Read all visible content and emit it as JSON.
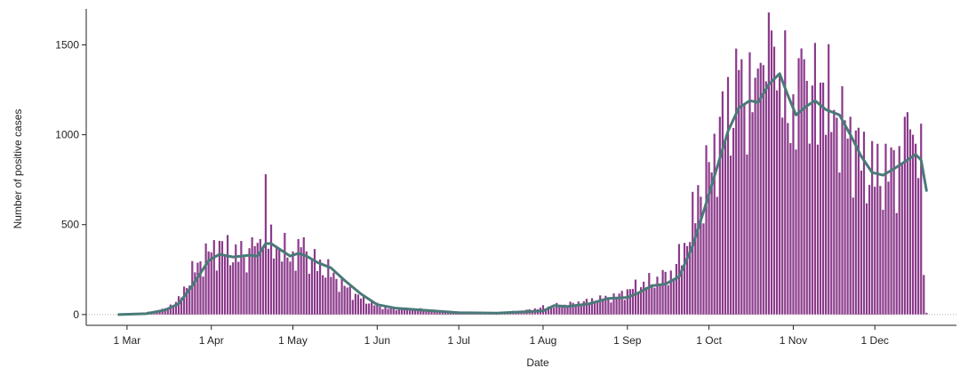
{
  "chart_data": {
    "type": "bar",
    "title": "",
    "xlabel": "Date",
    "ylabel": "Number of positive cases",
    "x_start_date": "2020-02-27",
    "x_range": [
      "2020-02-15",
      "2020-12-31"
    ],
    "ylim": [
      -60,
      1700
    ],
    "yticks": [
      0,
      500,
      1000,
      1500
    ],
    "xticks": [
      {
        "label": "1 Mar",
        "date": "2020-03-01"
      },
      {
        "label": "1 Apr",
        "date": "2020-04-01"
      },
      {
        "label": "1 May",
        "date": "2020-05-01"
      },
      {
        "label": "1 Jun",
        "date": "2020-06-01"
      },
      {
        "label": "1 Jul",
        "date": "2020-07-01"
      },
      {
        "label": "1 Aug",
        "date": "2020-08-01"
      },
      {
        "label": "1 Sep",
        "date": "2020-09-01"
      },
      {
        "label": "1 Oct",
        "date": "2020-10-01"
      },
      {
        "label": "1 Nov",
        "date": "2020-11-01"
      },
      {
        "label": "1 Dec",
        "date": "2020-12-01"
      }
    ],
    "colors": {
      "bars": "#8b3a8b",
      "trend": "#4a7a78",
      "zero_line": "#aaaaaa"
    },
    "bar_anchors": [
      [
        "2020-02-27",
        0
      ],
      [
        "2020-03-05",
        3
      ],
      [
        "2020-03-10",
        15
      ],
      [
        "2020-03-15",
        30
      ],
      [
        "2020-03-20",
        80
      ],
      [
        "2020-03-25",
        230
      ],
      [
        "2020-03-30",
        330
      ],
      [
        "2020-04-04",
        370
      ],
      [
        "2020-04-09",
        340
      ],
      [
        "2020-04-14",
        320
      ],
      [
        "2020-04-19",
        340
      ],
      [
        "2020-04-24",
        390
      ],
      [
        "2020-04-29",
        330
      ],
      [
        "2020-05-04",
        330
      ],
      [
        "2020-05-09",
        290
      ],
      [
        "2020-05-14",
        240
      ],
      [
        "2020-05-19",
        170
      ],
      [
        "2020-05-24",
        110
      ],
      [
        "2020-05-29",
        70
      ],
      [
        "2020-06-03",
        40
      ],
      [
        "2020-06-10",
        30
      ],
      [
        "2020-06-20",
        25
      ],
      [
        "2020-07-01",
        10
      ],
      [
        "2020-07-15",
        10
      ],
      [
        "2020-07-25",
        20
      ],
      [
        "2020-08-01",
        40
      ],
      [
        "2020-08-10",
        55
      ],
      [
        "2020-08-20",
        80
      ],
      [
        "2020-08-28",
        100
      ],
      [
        "2020-09-05",
        160
      ],
      [
        "2020-09-12",
        190
      ],
      [
        "2020-09-18",
        230
      ],
      [
        "2020-09-22",
        380
      ],
      [
        "2020-09-27",
        600
      ],
      [
        "2020-10-02",
        850
      ],
      [
        "2020-10-06",
        1050
      ],
      [
        "2020-10-10",
        1180
      ],
      [
        "2020-10-14",
        1250
      ],
      [
        "2020-10-18",
        1180
      ],
      [
        "2020-10-22",
        1300
      ],
      [
        "2020-10-26",
        1310
      ],
      [
        "2020-10-29",
        1200
      ],
      [
        "2020-11-01",
        1120
      ],
      [
        "2020-11-05",
        1180
      ],
      [
        "2020-11-09",
        1190
      ],
      [
        "2020-11-13",
        1140
      ],
      [
        "2020-11-17",
        1110
      ],
      [
        "2020-11-21",
        1020
      ],
      [
        "2020-11-25",
        900
      ],
      [
        "2020-11-29",
        800
      ],
      [
        "2020-12-03",
        780
      ],
      [
        "2020-12-08",
        820
      ],
      [
        "2020-12-12",
        880
      ],
      [
        "2020-12-16",
        900
      ],
      [
        "2020-12-18",
        800
      ],
      [
        "2020-12-20",
        600
      ]
    ],
    "bar_overrides": [
      [
        "2020-04-21",
        780
      ],
      [
        "2020-04-19",
        420
      ],
      [
        "2020-04-16",
        430
      ],
      [
        "2020-04-04",
        410
      ],
      [
        "2020-05-05",
        430
      ],
      [
        "2020-05-03",
        420
      ],
      [
        "2020-10-23",
        1680
      ],
      [
        "2020-10-24",
        1580
      ],
      [
        "2020-10-25",
        1490
      ],
      [
        "2020-10-20",
        1400
      ],
      [
        "2020-10-13",
        1420
      ],
      [
        "2020-10-12",
        1360
      ],
      [
        "2020-11-04",
        1480
      ],
      [
        "2020-11-05",
        1420
      ],
      [
        "2020-11-11",
        1290
      ],
      [
        "2020-11-12",
        1290
      ],
      [
        "2020-11-19",
        1270
      ],
      [
        "2020-09-27",
        720
      ],
      [
        "2020-10-05",
        1100
      ],
      [
        "2020-12-12",
        1100
      ],
      [
        "2020-12-14",
        1030
      ],
      [
        "2020-12-15",
        1000
      ],
      [
        "2020-12-16",
        950
      ],
      [
        "2020-12-19",
        220
      ],
      [
        "2020-12-20",
        10
      ]
    ],
    "trend_points": [
      [
        "2020-02-27",
        0
      ],
      [
        "2020-03-08",
        5
      ],
      [
        "2020-03-15",
        25
      ],
      [
        "2020-03-20",
        60
      ],
      [
        "2020-03-25",
        160
      ],
      [
        "2020-03-31",
        300
      ],
      [
        "2020-04-04",
        335
      ],
      [
        "2020-04-09",
        320
      ],
      [
        "2020-04-15",
        330
      ],
      [
        "2020-04-18",
        325
      ],
      [
        "2020-04-21",
        395
      ],
      [
        "2020-04-23",
        395
      ],
      [
        "2020-04-27",
        355
      ],
      [
        "2020-04-30",
        325
      ],
      [
        "2020-05-03",
        340
      ],
      [
        "2020-05-06",
        325
      ],
      [
        "2020-05-10",
        290
      ],
      [
        "2020-05-15",
        260
      ],
      [
        "2020-05-20",
        190
      ],
      [
        "2020-05-26",
        115
      ],
      [
        "2020-06-01",
        55
      ],
      [
        "2020-06-08",
        35
      ],
      [
        "2020-06-20",
        22
      ],
      [
        "2020-07-01",
        10
      ],
      [
        "2020-07-15",
        8
      ],
      [
        "2020-07-25",
        15
      ],
      [
        "2020-08-01",
        20
      ],
      [
        "2020-08-05",
        50
      ],
      [
        "2020-08-10",
        45
      ],
      [
        "2020-08-18",
        60
      ],
      [
        "2020-08-25",
        90
      ],
      [
        "2020-09-01",
        95
      ],
      [
        "2020-09-05",
        120
      ],
      [
        "2020-09-10",
        160
      ],
      [
        "2020-09-15",
        170
      ],
      [
        "2020-09-20",
        210
      ],
      [
        "2020-09-25",
        380
      ],
      [
        "2020-09-30",
        620
      ],
      [
        "2020-10-04",
        820
      ],
      [
        "2020-10-08",
        1020
      ],
      [
        "2020-10-12",
        1150
      ],
      [
        "2020-10-16",
        1190
      ],
      [
        "2020-10-19",
        1180
      ],
      [
        "2020-10-23",
        1280
      ],
      [
        "2020-10-27",
        1340
      ],
      [
        "2020-10-30",
        1220
      ],
      [
        "2020-11-02",
        1110
      ],
      [
        "2020-11-06",
        1160
      ],
      [
        "2020-11-09",
        1190
      ],
      [
        "2020-11-13",
        1140
      ],
      [
        "2020-11-18",
        1110
      ],
      [
        "2020-11-22",
        1000
      ],
      [
        "2020-11-26",
        880
      ],
      [
        "2020-11-30",
        790
      ],
      [
        "2020-12-04",
        775
      ],
      [
        "2020-12-08",
        810
      ],
      [
        "2020-12-12",
        850
      ],
      [
        "2020-12-16",
        890
      ],
      [
        "2020-12-18",
        860
      ],
      [
        "2020-12-20",
        690
      ]
    ]
  }
}
